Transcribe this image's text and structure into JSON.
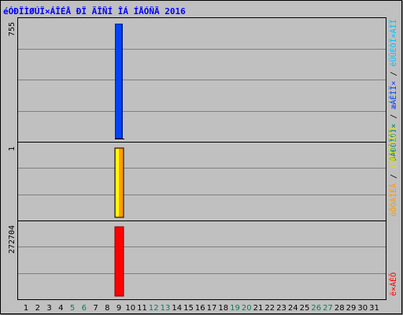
{
  "title": "éÓÐÏÌØÚÏ×ÁÎÉÅ ÐÏ ÄÎÑÍ ÎÁ ÍÅÓÑÃ 2016",
  "colors": {
    "background": "#c0c0c0",
    "title": "#0000ff",
    "hits": "#0042ff",
    "hits_border": "#002288",
    "files": "#ffff00",
    "files_fill": "#ff9900",
    "sites": "#ff0000",
    "weekend": "#00805c"
  },
  "right_labels": {
    "panel1": [
      {
        "text": "úÁÐÒÏÓÏ×",
        "color": "#00805c"
      },
      {
        "text": " / ",
        "color": "#000000"
      },
      {
        "text": "æÁÊÌÏ×",
        "color": "#0042ff"
      },
      {
        "text": " / ",
        "color": "#000000"
      },
      {
        "text": "ëÜÛÉÒÏ×ÁÎÏ",
        "color": "#00c0ff"
      }
    ],
    "panel2": [
      {
        "text": "óÔÒÁÎÉÃ",
        "color": "#ff9900"
      },
      {
        "text": " / ",
        "color": "#000000"
      },
      {
        "text": "ïÔËÌÏÎÅÎÏ",
        "color": "#e0e000"
      }
    ],
    "panel3": [
      {
        "text": "ë×ÁÊÔ",
        "color": "#ff0000"
      }
    ]
  },
  "chart_data": {
    "type": "bar",
    "days": [
      "1",
      "2",
      "3",
      "4",
      "5",
      "6",
      "7",
      "8",
      "9",
      "10",
      "11",
      "12",
      "13",
      "14",
      "15",
      "16",
      "17",
      "18",
      "19",
      "20",
      "21",
      "22",
      "23",
      "24",
      "25",
      "26",
      "27",
      "28",
      "29",
      "30",
      "31"
    ],
    "weekend_days": [
      "5",
      "6",
      "12",
      "13",
      "19",
      "20",
      "26",
      "27"
    ],
    "panels": [
      {
        "name": "hits",
        "max_label": "755",
        "max": 755,
        "series": [
          {
            "values": [
              0,
              0,
              0,
              0,
              0,
              0,
              0,
              0,
              755,
              0,
              0,
              0,
              0,
              0,
              0,
              0,
              0,
              0,
              0,
              0,
              0,
              0,
              0,
              0,
              0,
              0,
              0,
              0,
              0,
              0,
              0
            ]
          }
        ]
      },
      {
        "name": "pages",
        "max_label": "1",
        "max": 1,
        "series": [
          {
            "values": [
              0,
              0,
              0,
              0,
              0,
              0,
              0,
              0,
              1,
              0,
              0,
              0,
              0,
              0,
              0,
              0,
              0,
              0,
              0,
              0,
              0,
              0,
              0,
              0,
              0,
              0,
              0,
              0,
              0,
              0,
              0
            ]
          }
        ]
      },
      {
        "name": "kbytes",
        "max_label": "272704",
        "max": 272704,
        "series": [
          {
            "values": [
              0,
              0,
              0,
              0,
              0,
              0,
              0,
              0,
              272704,
              0,
              0,
              0,
              0,
              0,
              0,
              0,
              0,
              0,
              0,
              0,
              0,
              0,
              0,
              0,
              0,
              0,
              0,
              0,
              0,
              0,
              0
            ]
          }
        ]
      }
    ]
  }
}
